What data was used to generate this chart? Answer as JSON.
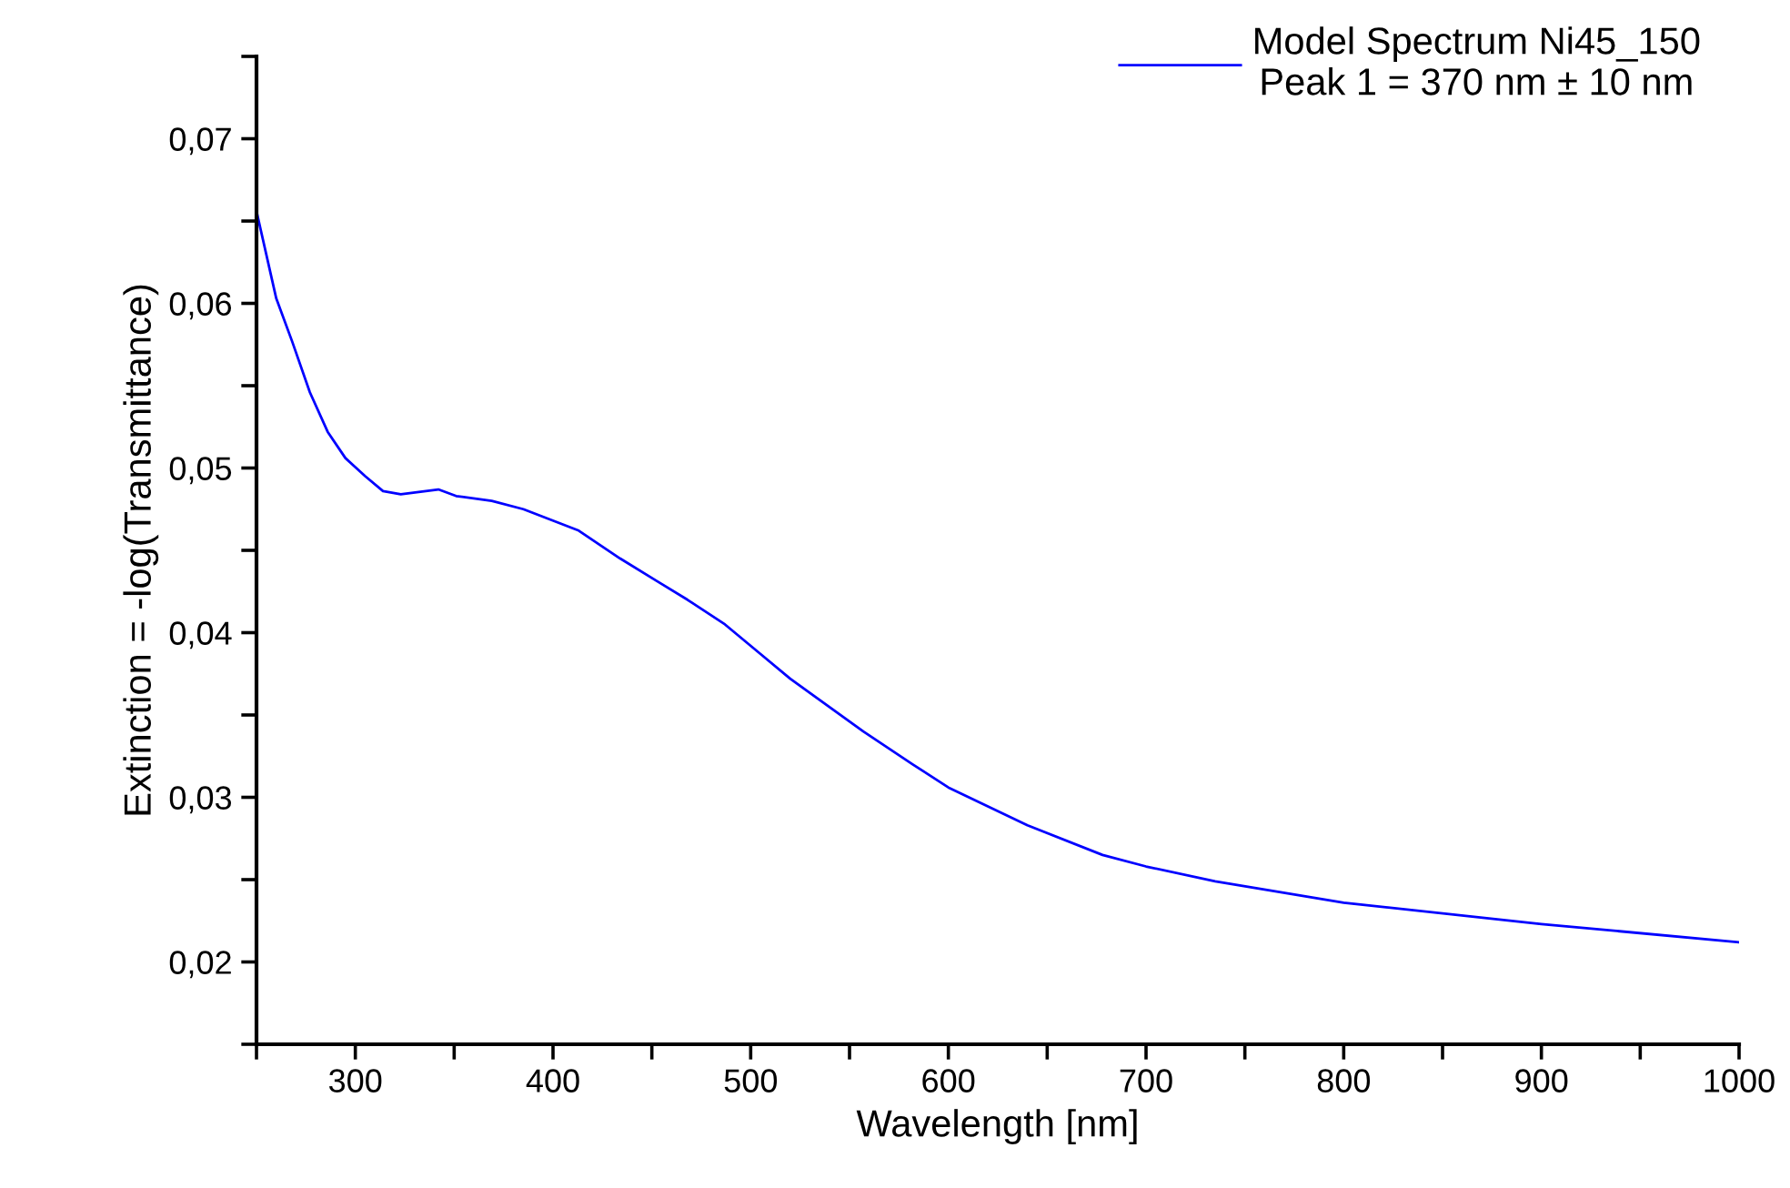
{
  "chart_data": {
    "type": "line",
    "xlabel": "Wavelength [nm]",
    "ylabel": "Extinction = -log(Transmittance)",
    "series": [
      {
        "name": "Model Spectrum Ni45_150\nPeak 1 = 370 nm ± 10 nm",
        "color": "#0000ff",
        "x": [
          250,
          260,
          268,
          277,
          286,
          295,
          305,
          314,
          323,
          342,
          351,
          369,
          385,
          413,
          434,
          453,
          468,
          487,
          505,
          520,
          557,
          582,
          600,
          640,
          678,
          700,
          735,
          800,
          900,
          1000
        ],
        "values": [
          0.0656,
          0.0603,
          0.0577,
          0.0546,
          0.0522,
          0.0506,
          0.0495,
          0.0486,
          0.0484,
          0.0487,
          0.0483,
          0.048,
          0.0475,
          0.0462,
          0.0445,
          0.0431,
          0.042,
          0.0405,
          0.0387,
          0.0372,
          0.034,
          0.032,
          0.0306,
          0.0283,
          0.0265,
          0.0258,
          0.0249,
          0.0236,
          0.0223,
          0.0212
        ]
      }
    ],
    "xlim": [
      250,
      1000
    ],
    "xticks": [
      {
        "value": 250,
        "label": null
      },
      300,
      {
        "value": 350,
        "label": null
      },
      400,
      {
        "value": 450,
        "label": null
      },
      500,
      {
        "value": 550,
        "label": null
      },
      600,
      {
        "value": 650,
        "label": null
      },
      700,
      {
        "value": 750,
        "label": null
      },
      800,
      {
        "value": 850,
        "label": null
      },
      900,
      {
        "value": 950,
        "label": null
      },
      1000
    ],
    "ylim": [
      0.015,
      0.075
    ],
    "yticks": [
      {
        "value": 0.015,
        "label": null
      },
      {
        "value": 0.02,
        "label": "0,02"
      },
      {
        "value": 0.025,
        "label": null
      },
      {
        "value": 0.03,
        "label": "0,03"
      },
      {
        "value": 0.035,
        "label": null
      },
      {
        "value": 0.04,
        "label": "0,04"
      },
      {
        "value": 0.045,
        "label": null
      },
      {
        "value": 0.05,
        "label": "0,05"
      },
      {
        "value": 0.055,
        "label": null
      },
      {
        "value": 0.06,
        "label": "0,06"
      },
      {
        "value": 0.065,
        "label": null
      },
      {
        "value": 0.07,
        "label": "0,07"
      },
      {
        "value": 0.075,
        "label": null
      }
    ],
    "grid": false,
    "legend": "top right",
    "marker": "none",
    "line_style": "solid"
  }
}
